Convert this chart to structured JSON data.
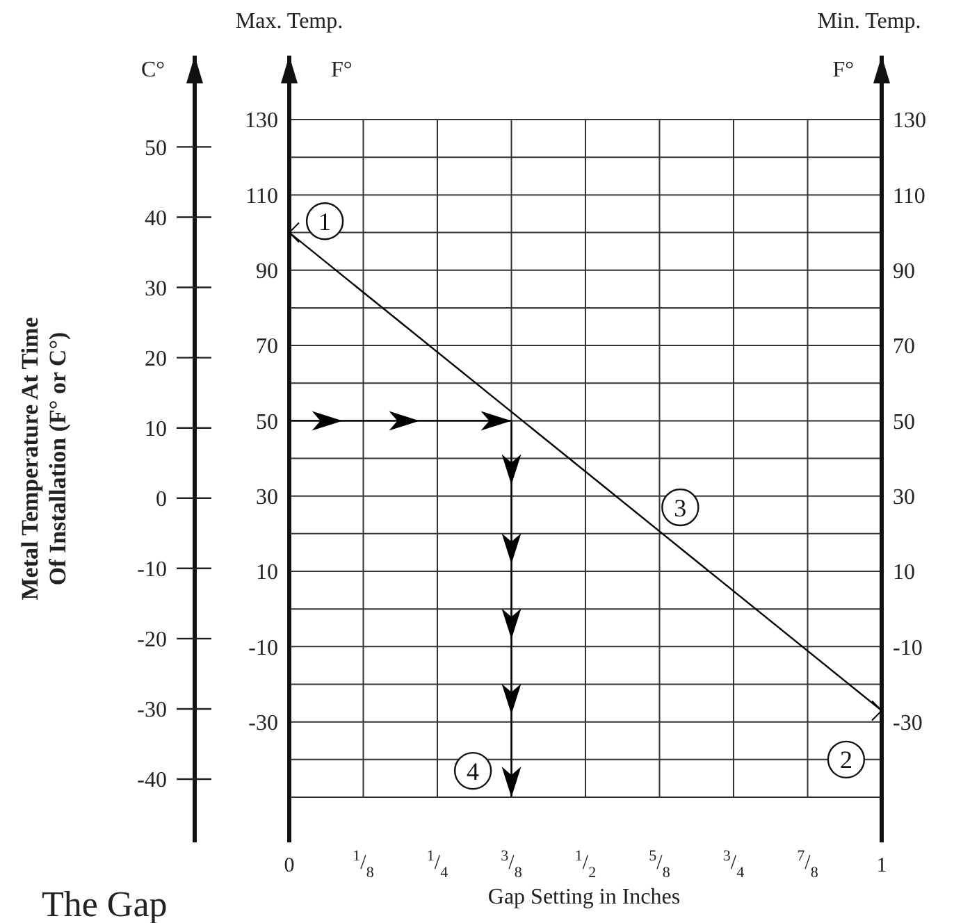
{
  "chart_data": {
    "type": "line",
    "title": "The Gap",
    "xlabel": "Gap Setting in Inches",
    "ylabel": "Metal Temperature At Time\nOf Installation (F° or C°)",
    "y3label": "C°",
    "annotations": [
      "Max. Temp.",
      "F°",
      "Min. Temp.",
      "F°",
      {
        "text": "1",
        "x": 0.06,
        "y": 103
      },
      {
        "text": "2",
        "x": 0.94,
        "y": -40
      },
      {
        "text": "3",
        "x": 0.66,
        "y": 27
      },
      {
        "text": "4",
        "x": 0.31,
        "y": -43
      }
    ],
    "xlim": [
      0,
      1
    ],
    "xticks": [
      0,
      {
        "value": 0.125,
        "label": "$^{1}$/$_{8}$"
      },
      {
        "value": 0.25,
        "label": "$^{1}$/$_{4}$"
      },
      {
        "value": 0.375,
        "label": "$^{3}$/$_{8}$"
      },
      {
        "value": 0.5,
        "label": "$^{1}$/$_{2}$"
      },
      {
        "value": 0.625,
        "label": "$^{5}$/$_{8}$"
      },
      {
        "value": 0.75,
        "label": "$^{3}$/$_{4}$"
      },
      {
        "value": 0.875,
        "label": "$^{7}$/$_{8}$"
      },
      1
    ],
    "ylim": [
      -62,
      147
    ],
    "yticks": [
      {
        "value": -50,
        "label": null
      },
      {
        "value": -40,
        "label": null
      },
      -30,
      {
        "value": -20,
        "label": null
      },
      -10,
      {
        "value": 0,
        "label": null
      },
      10,
      {
        "value": 20,
        "label": null
      },
      30,
      {
        "value": 40,
        "label": null
      },
      50,
      {
        "value": 60,
        "label": null
      },
      70,
      {
        "value": 80,
        "label": null
      },
      90,
      {
        "value": 100,
        "label": null
      },
      110,
      {
        "value": 120,
        "label": null
      },
      130
    ],
    "y2lim": [
      -62,
      147
    ],
    "y2ticks": [
      -30,
      -10,
      10,
      30,
      50,
      70,
      90,
      110,
      130
    ],
    "y3lim": [
      -49,
      63
    ],
    "y3ticks": [
      -40,
      -30,
      -20,
      -10,
      0,
      10,
      20,
      30,
      40,
      50
    ],
    "grid": true,
    "series": [
      {
        "color": "#000000",
        "marker": "cross",
        "x": [
          0,
          1
        ],
        "values": [
          100,
          -27
        ]
      },
      {
        "color": "#000000",
        "x": [
          0,
          0.09,
          0.22,
          0.375,
          0.375,
          0.375,
          0.375,
          0.375,
          0.375
        ],
        "values": [
          50,
          50,
          50,
          50,
          33,
          12,
          -8,
          -28,
          -50
        ]
      }
    ]
  }
}
